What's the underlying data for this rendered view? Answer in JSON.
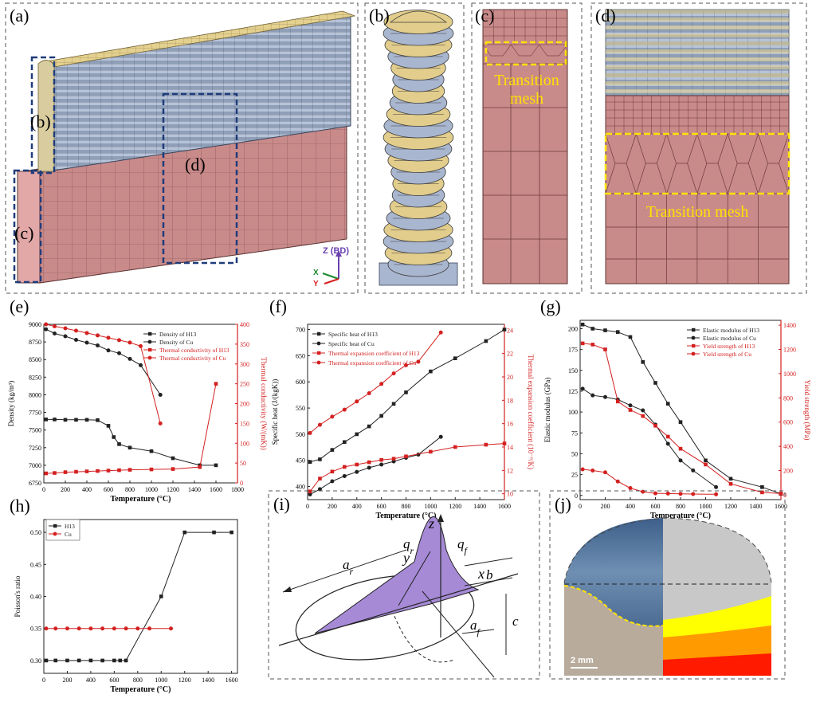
{
  "panels": {
    "a": {
      "label": "(a)",
      "callouts": {
        "b": "(b)",
        "c": "(c)",
        "d": "(d)"
      },
      "axes": {
        "z": "Z (BD)",
        "x": "X",
        "y": "Y"
      }
    },
    "b": {
      "label": "(b)"
    },
    "c": {
      "label": "(c)",
      "annotation_line1": "Transition",
      "annotation_line2": "mesh"
    },
    "d": {
      "label": "(d)",
      "annotation": "Transition mesh"
    },
    "i": {
      "label": "(i)",
      "symbols": {
        "z": "z",
        "y": "y",
        "x": "x",
        "qr": "q_r",
        "qf": "q_f",
        "ar": "a_r",
        "af": "a_f",
        "b": "b",
        "c": "c"
      }
    },
    "j": {
      "label": "(j)",
      "scale_bar": "2 mm"
    }
  },
  "colors": {
    "mesh_red": "#c98a8a",
    "bead_gold": "#e2cd8c",
    "bead_blue": "#a9b6cf",
    "series_black": "#222222",
    "series_red": "#d42020",
    "dash_yellow": "#ffe300",
    "purple": "#a68ad6",
    "navy_dash": "#1f3c7a"
  },
  "chart_data": [
    {
      "panel": "(e)",
      "type": "line",
      "xlabel": "Temperature (°C)",
      "ylabel": "Density (kg/m³)",
      "y2label": "Thermal conductivity (W/(mK))",
      "xlim": [
        0,
        1800
      ],
      "ylim": [
        6750,
        9000
      ],
      "y2lim": [
        0,
        400
      ],
      "xticks": [
        0,
        200,
        400,
        600,
        800,
        1000,
        1200,
        1400,
        1600,
        1800
      ],
      "yticks": [
        6750,
        7000,
        7250,
        7500,
        7750,
        8000,
        8250,
        8500,
        8750,
        9000
      ],
      "y2ticks": [
        0,
        50,
        100,
        150,
        200,
        250,
        300,
        350,
        400
      ],
      "legend_position": "top-right",
      "series": [
        {
          "name": "Density of H13",
          "axis": "left",
          "color": "#222222",
          "marker": "square",
          "x": [
            20,
            100,
            200,
            300,
            400,
            500,
            600,
            650,
            700,
            800,
            1000,
            1200,
            1450,
            1600
          ],
          "y": [
            7650,
            7650,
            7645,
            7645,
            7645,
            7640,
            7560,
            7400,
            7300,
            7250,
            7200,
            7100,
            7000,
            7000
          ]
        },
        {
          "name": "Density of Cu",
          "axis": "left",
          "color": "#222222",
          "marker": "circle",
          "x": [
            20,
            100,
            200,
            300,
            400,
            500,
            600,
            700,
            800,
            900,
            1083
          ],
          "y": [
            8930,
            8870,
            8830,
            8780,
            8740,
            8700,
            8630,
            8590,
            8510,
            8420,
            8000
          ]
        },
        {
          "name": "Thermal conductivity of H13",
          "axis": "right",
          "color": "#d42020",
          "marker": "square",
          "x": [
            20,
            100,
            200,
            300,
            400,
            500,
            600,
            700,
            800,
            1000,
            1200,
            1450,
            1600
          ],
          "y": [
            24,
            25,
            27,
            28,
            29,
            30,
            31,
            32,
            33,
            34,
            35,
            40,
            250
          ]
        },
        {
          "name": "Thermal conductivity of Cu",
          "axis": "right",
          "color": "#d42020",
          "marker": "circle",
          "x": [
            20,
            100,
            200,
            300,
            400,
            500,
            600,
            700,
            800,
            900,
            1083
          ],
          "y": [
            400,
            395,
            390,
            384,
            378,
            372,
            366,
            360,
            354,
            345,
            150
          ]
        }
      ]
    },
    {
      "panel": "(f)",
      "type": "line",
      "xlabel": "Temperature (°C)",
      "ylabel": "Specific heat (J/(kgK))",
      "y2label": "Thermal expansion coefficient (10⁻⁶/K)",
      "xlim": [
        0,
        1600
      ],
      "ylim": [
        375,
        710
      ],
      "y2lim": [
        9.5,
        24.5
      ],
      "xticks": [
        0,
        200,
        400,
        600,
        800,
        1000,
        1200,
        1400,
        1600
      ],
      "yticks": [
        400,
        450,
        500,
        550,
        600,
        650,
        700
      ],
      "y2ticks": [
        10,
        12,
        14,
        16,
        18,
        20,
        22,
        24
      ],
      "legend_position": "top-left",
      "series": [
        {
          "name": "Specific heat of H13",
          "axis": "left",
          "color": "#222222",
          "marker": "square",
          "x": [
            20,
            100,
            200,
            300,
            400,
            500,
            600,
            700,
            800,
            1000,
            1200,
            1450,
            1600
          ],
          "y": [
            447,
            452,
            470,
            485,
            500,
            515,
            535,
            558,
            580,
            620,
            645,
            678,
            700
          ]
        },
        {
          "name": "Specific heat of Cu",
          "axis": "left",
          "color": "#222222",
          "marker": "circle",
          "x": [
            20,
            100,
            200,
            300,
            400,
            500,
            600,
            700,
            800,
            900,
            1083
          ],
          "y": [
            385,
            395,
            410,
            420,
            428,
            436,
            442,
            448,
            455,
            461,
            495
          ]
        },
        {
          "name": "Thermal expansion coefficient of H13",
          "axis": "right",
          "color": "#d42020",
          "marker": "square",
          "x": [
            20,
            100,
            200,
            300,
            400,
            500,
            600,
            700,
            800,
            1000,
            1200,
            1450,
            1600
          ],
          "y": [
            10.2,
            11.3,
            11.9,
            12.3,
            12.5,
            12.7,
            12.9,
            13.0,
            13.2,
            13.6,
            14.0,
            14.2,
            14.3
          ]
        },
        {
          "name": "Thermal expansion coefficient of Cu",
          "axis": "right",
          "color": "#d42020",
          "marker": "circle",
          "x": [
            20,
            100,
            200,
            300,
            400,
            500,
            600,
            700,
            800,
            900,
            1083
          ],
          "y": [
            15.2,
            15.9,
            16.6,
            17.2,
            17.9,
            18.6,
            19.4,
            20.3,
            21.0,
            21.3,
            23.8
          ]
        }
      ]
    },
    {
      "panel": "(g)",
      "type": "line",
      "xlabel": "Temperature (°C)",
      "ylabel": "Elastic modulus (GPa)",
      "y2label": "Yield strength (MPa)",
      "xlim": [
        0,
        1600
      ],
      "ylim": [
        -5,
        210
      ],
      "y2lim": [
        -40,
        1440
      ],
      "xticks": [
        0,
        200,
        400,
        600,
        800,
        1000,
        1200,
        1400,
        1600
      ],
      "yticks": [
        0,
        25,
        50,
        75,
        100,
        125,
        150,
        175,
        200
      ],
      "y2ticks": [
        0,
        200,
        400,
        600,
        800,
        1000,
        1200,
        1400
      ],
      "legend_position": "top-right",
      "series": [
        {
          "name": "Elastic modulus of H13",
          "axis": "left",
          "color": "#222222",
          "marker": "square",
          "x": [
            20,
            100,
            200,
            300,
            400,
            500,
            600,
            700,
            800,
            1000,
            1200,
            1450,
            1600
          ],
          "y": [
            205,
            200,
            198,
            196,
            190,
            160,
            135,
            110,
            88,
            42,
            20,
            10,
            2
          ]
        },
        {
          "name": "Elastic modulus of Cu",
          "axis": "left",
          "color": "#222222",
          "marker": "circle",
          "x": [
            20,
            100,
            200,
            300,
            400,
            500,
            600,
            700,
            800,
            900,
            1083
          ],
          "y": [
            128,
            120,
            118,
            115,
            108,
            102,
            85,
            62,
            42,
            30,
            10
          ]
        },
        {
          "name": "Yield strength of H13",
          "axis": "right",
          "color": "#d42020",
          "marker": "square",
          "x": [
            20,
            100,
            200,
            300,
            400,
            500,
            600,
            700,
            800,
            1000,
            1200,
            1450,
            1600
          ],
          "y": [
            1250,
            1240,
            1200,
            770,
            700,
            650,
            570,
            480,
            380,
            250,
            90,
            20,
            10
          ]
        },
        {
          "name": "Yield strength of Cu",
          "axis": "right",
          "color": "#d42020",
          "marker": "circle",
          "x": [
            20,
            100,
            200,
            300,
            400,
            500,
            600,
            700,
            800,
            900,
            1083
          ],
          "y": [
            210,
            200,
            185,
            110,
            55,
            25,
            12,
            10,
            8,
            6,
            4
          ]
        }
      ]
    },
    {
      "panel": "(h)",
      "type": "line",
      "xlabel": "Temperature (°C)",
      "ylabel": "Poisson's ratio",
      "xlim": [
        0,
        1650
      ],
      "ylim": [
        0.28,
        0.52
      ],
      "xticks": [
        0,
        200,
        400,
        600,
        800,
        1000,
        1200,
        1400,
        1600
      ],
      "yticks": [
        0.3,
        0.35,
        0.4,
        0.45,
        0.5
      ],
      "legend_position": "top-left",
      "series": [
        {
          "name": "H13",
          "axis": "left",
          "color": "#222222",
          "marker": "square",
          "x": [
            20,
            100,
            200,
            300,
            400,
            500,
            600,
            650,
            700,
            1000,
            1200,
            1450,
            1600
          ],
          "y": [
            0.3,
            0.3,
            0.3,
            0.3,
            0.3,
            0.3,
            0.3,
            0.3,
            0.3,
            0.4,
            0.5,
            0.5,
            0.5
          ]
        },
        {
          "name": "Cu",
          "axis": "left",
          "color": "#d42020",
          "marker": "circle",
          "x": [
            20,
            100,
            200,
            300,
            400,
            500,
            600,
            700,
            800,
            900,
            1083
          ],
          "y": [
            0.35,
            0.35,
            0.35,
            0.35,
            0.35,
            0.35,
            0.35,
            0.35,
            0.35,
            0.35,
            0.35
          ]
        }
      ]
    }
  ]
}
